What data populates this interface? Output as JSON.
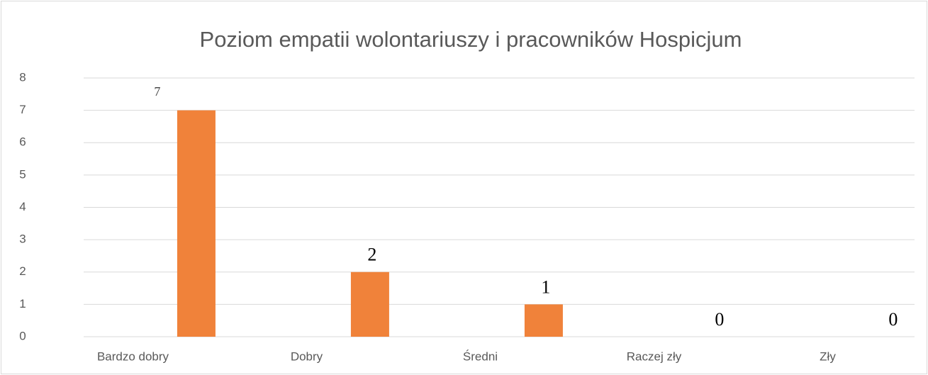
{
  "chart_data": {
    "type": "bar",
    "title": "Poziom empatii wolontariuszy i pracowników Hospicjum",
    "categories": [
      "Bardzo dobry",
      "Dobry",
      "Średni",
      "Raczej zły",
      "Zły"
    ],
    "values": [
      7,
      2,
      1,
      0,
      0
    ],
    "color": "#f0823a",
    "ylim": [
      0,
      8
    ],
    "yticks": [
      0,
      1,
      2,
      3,
      4,
      5,
      6,
      7,
      8
    ],
    "grid": true
  }
}
